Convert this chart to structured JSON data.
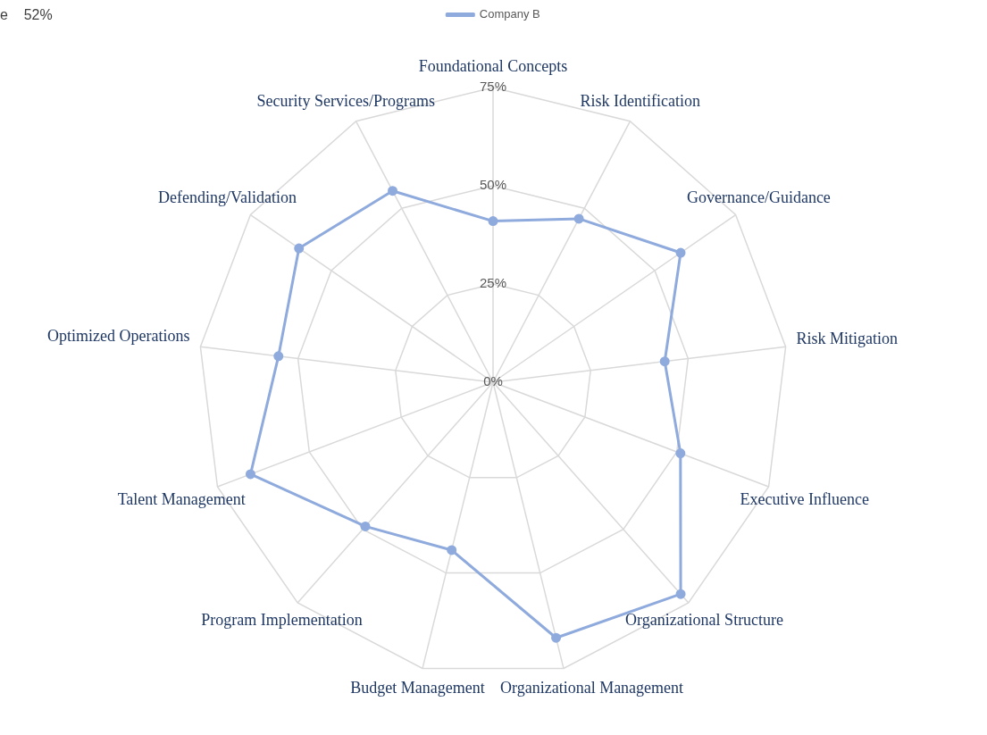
{
  "chart_data": {
    "type": "radar",
    "categories": [
      "Foundational Concepts",
      "Risk Identification",
      "Governance/Guidance",
      "Risk Mitigation",
      "Executive Influence",
      "Organizational Structure",
      "Organizational Management",
      "Budget Management",
      "Program Implementation",
      "Talent Management",
      "Optimized Operations",
      "Defending/Validation",
      "Security Services/Programs"
    ],
    "series": [
      {
        "name": "Company B",
        "color": "#8faadc",
        "values": [
          41,
          47,
          58,
          44,
          51,
          72,
          67,
          44,
          49,
          66,
          55,
          60,
          55
        ]
      }
    ],
    "ylim": [
      0,
      75
    ],
    "yticks": [
      {
        "value": 0,
        "label": "0%"
      },
      {
        "value": 25,
        "label": "25%"
      },
      {
        "value": 50,
        "label": "50%"
      },
      {
        "value": 75,
        "label": "75%"
      }
    ],
    "grid": true,
    "legend": "top",
    "marker": "circle",
    "annotations": [
      "e    52%"
    ]
  }
}
